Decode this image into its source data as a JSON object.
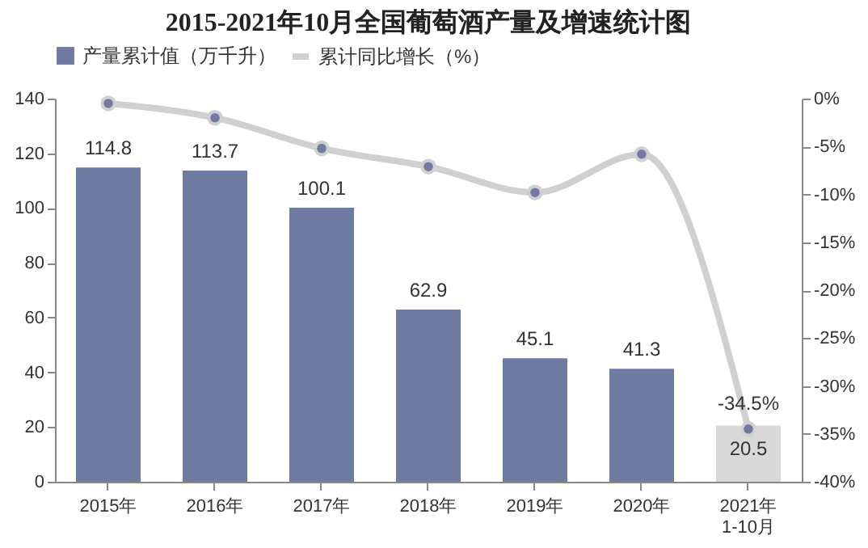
{
  "chart_data": {
    "type": "bar",
    "title": "2015-2021年10月全国葡萄酒产量及增速统计图",
    "categories": [
      "2015年",
      "2016年",
      "2017年",
      "2018年",
      "2019年",
      "2020年",
      "2021年\n1-10月"
    ],
    "series": [
      {
        "name": "产量累计值（万千升）",
        "color": "#6f7ba0",
        "colors": [
          "#6f7ba0",
          "#6f7ba0",
          "#6f7ba0",
          "#6f7ba0",
          "#6f7ba0",
          "#6f7ba0",
          "#d9d9d9"
        ],
        "values": [
          114.8,
          113.7,
          100.1,
          62.9,
          45.1,
          41.3,
          20.5
        ]
      },
      {
        "name": "累计同比增长（%）",
        "type": "line",
        "axis": "y2",
        "color": "#d0d0d0",
        "values": [
          -0.5,
          -2.0,
          -5.2,
          -7.1,
          -9.8,
          -5.8,
          -34.5
        ],
        "value_labels": [
          null,
          null,
          null,
          null,
          null,
          null,
          "-34.5%"
        ]
      }
    ],
    "data_labels": true,
    "marker": "circle",
    "legend": "top",
    "grid": false,
    "ylim": [
      0,
      140
    ],
    "yticks": [
      0,
      20,
      40,
      60,
      80,
      100,
      120,
      140
    ],
    "y2lim": [
      -40,
      0
    ],
    "y2ticks": [
      {
        "value": 0,
        "label": "0%"
      },
      {
        "value": -5,
        "label": "-5%"
      },
      {
        "value": -10,
        "label": "-10%"
      },
      {
        "value": -15,
        "label": "-15%"
      },
      {
        "value": -20,
        "label": "-20%"
      },
      {
        "value": -25,
        "label": "-25%"
      },
      {
        "value": -30,
        "label": "-30%"
      },
      {
        "value": -35,
        "label": "-35%"
      },
      {
        "value": -40,
        "label": "-40%"
      }
    ]
  }
}
